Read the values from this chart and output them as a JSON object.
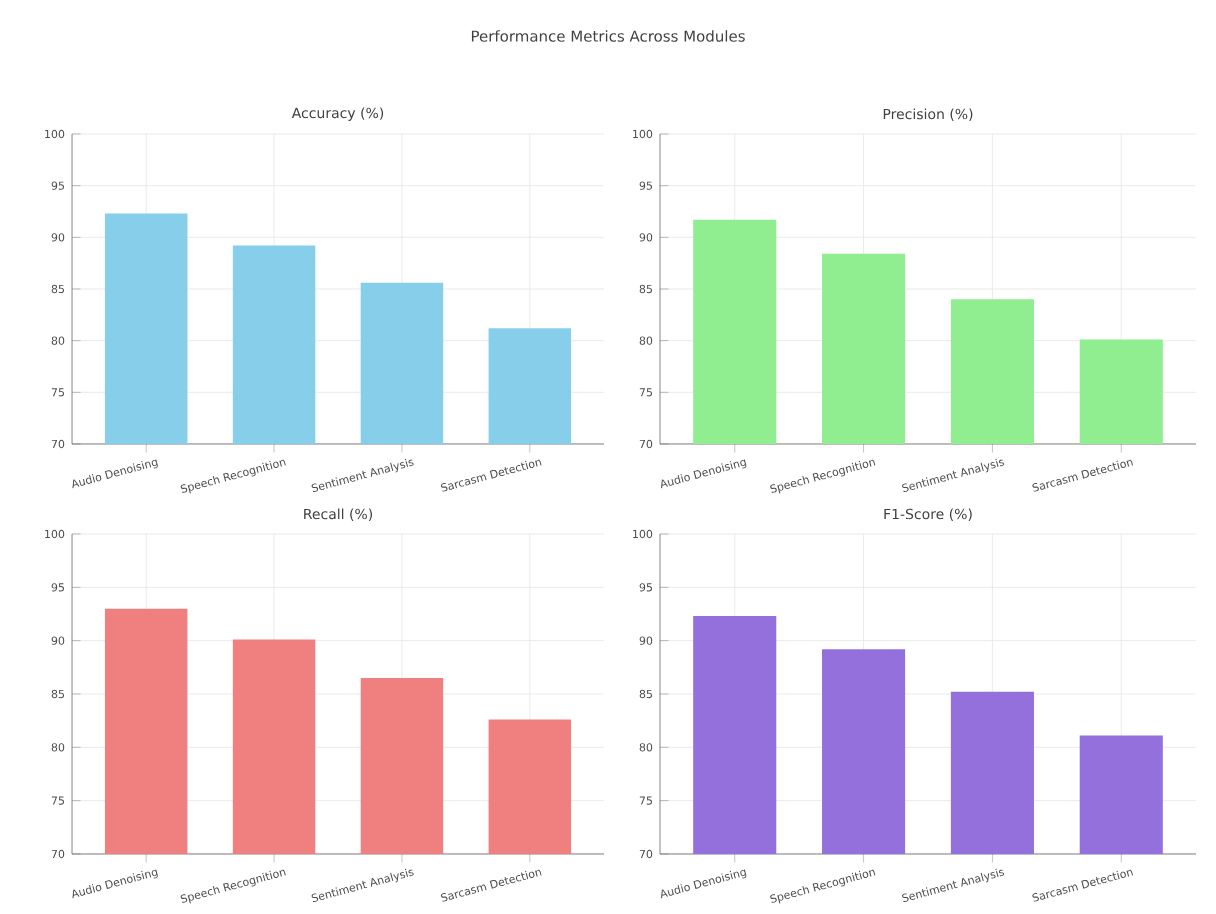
{
  "chart_data": [
    {
      "type": "bar",
      "title": "Performance Metrics Across Modules",
      "subtitle": "Accuracy (%)",
      "categories": [
        "Audio Denoising",
        "Speech Recognition",
        "Sentiment Analysis",
        "Sarcasm Detection"
      ],
      "values": [
        92.3,
        89.2,
        85.6,
        81.2
      ],
      "color": "#87ceeb",
      "ylim": [
        70,
        100
      ],
      "yticks": [
        70,
        75,
        80,
        85,
        90,
        95,
        100
      ],
      "grid": true
    },
    {
      "type": "bar",
      "title": "Precision (%)",
      "categories": [
        "Audio Denoising",
        "Speech Recognition",
        "Sentiment Analysis",
        "Sarcasm Detection"
      ],
      "values": [
        91.7,
        88.4,
        84.0,
        80.1
      ],
      "color": "#90ee90",
      "ylim": [
        70,
        100
      ],
      "yticks": [
        70,
        75,
        80,
        85,
        90,
        95,
        100
      ],
      "grid": true
    },
    {
      "type": "bar",
      "title": "Recall (%)",
      "categories": [
        "Audio Denoising",
        "Speech Recognition",
        "Sentiment Analysis",
        "Sarcasm Detection"
      ],
      "values": [
        93.0,
        90.1,
        86.5,
        82.6
      ],
      "color": "#f08080",
      "ylim": [
        70,
        100
      ],
      "yticks": [
        70,
        75,
        80,
        85,
        90,
        95,
        100
      ],
      "grid": true
    },
    {
      "type": "bar",
      "title": "F1-Score (%)",
      "categories": [
        "Audio Denoising",
        "Speech Recognition",
        "Sentiment Analysis",
        "Sarcasm Detection"
      ],
      "values": [
        92.3,
        89.2,
        85.2,
        81.1
      ],
      "color": "#9370db",
      "ylim": [
        70,
        100
      ],
      "yticks": [
        70,
        75,
        80,
        85,
        90,
        95,
        100
      ],
      "grid": true
    }
  ]
}
